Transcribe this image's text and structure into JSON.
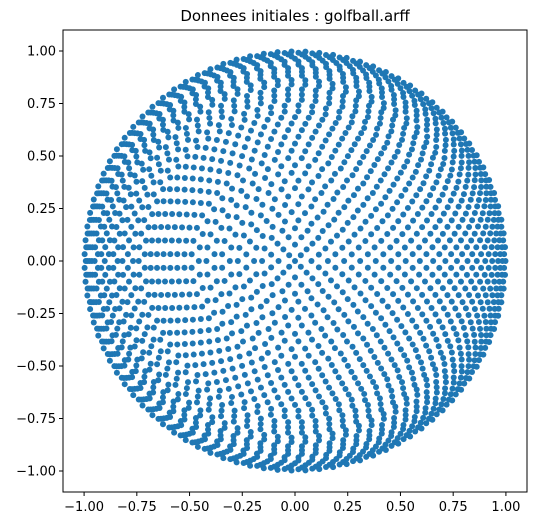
{
  "chart_data": {
    "type": "scatter",
    "title": "Donnees initiales : golfball.arff",
    "xlabel": "",
    "ylabel": "",
    "xlim": [
      -1.1,
      1.1
    ],
    "ylim": [
      -1.1,
      1.1
    ],
    "xticks": [
      -1.0,
      -0.75,
      -0.5,
      -0.25,
      0.0,
      0.25,
      0.5,
      0.75,
      1.0
    ],
    "yticks": [
      -1.0,
      -0.75,
      -0.5,
      -0.25,
      0.0,
      0.25,
      0.5,
      0.75,
      1.0
    ],
    "xtick_labels": [
      "−1.00",
      "−0.75",
      "−0.50",
      "−0.25",
      "0.00",
      "0.25",
      "0.50",
      "0.75",
      "1.00"
    ],
    "ytick_labels": [
      "−1.00",
      "−0.75",
      "−0.50",
      "−0.25",
      "0.00",
      "0.25",
      "0.50",
      "0.75",
      "1.00"
    ],
    "grid": false,
    "legend": false,
    "point_color": "#1f77b4",
    "series": [
      {
        "description_of_points": "",
        "rings": [
          {
            "r": 0.0,
            "n": 1
          },
          {
            "r": 0.039,
            "n": 4
          },
          {
            "r": 0.078,
            "n": 8
          },
          {
            "r": 0.117,
            "n": 12
          },
          {
            "r": 0.156,
            "n": 16
          },
          {
            "r": 0.194,
            "n": 19
          },
          {
            "r": 0.233,
            "n": 23
          },
          {
            "r": 0.271,
            "n": 27
          },
          {
            "r": 0.309,
            "n": 30
          },
          {
            "r": 0.347,
            "n": 34
          },
          {
            "r": 0.383,
            "n": 37
          },
          {
            "r": 0.42,
            "n": 41
          },
          {
            "r": 0.456,
            "n": 44
          },
          {
            "r": 0.491,
            "n": 48
          },
          {
            "r": 0.525,
            "n": 51
          },
          {
            "r": 0.559,
            "n": 54
          },
          {
            "r": 0.592,
            "n": 57
          },
          {
            "r": 0.624,
            "n": 60
          },
          {
            "r": 0.655,
            "n": 63
          },
          {
            "r": 0.685,
            "n": 66
          },
          {
            "r": 0.713,
            "n": 69
          },
          {
            "r": 0.741,
            "n": 71
          },
          {
            "r": 0.768,
            "n": 74
          },
          {
            "r": 0.793,
            "n": 76
          },
          {
            "r": 0.818,
            "n": 78
          },
          {
            "r": 0.841,
            "n": 81
          },
          {
            "r": 0.862,
            "n": 83
          },
          {
            "r": 0.883,
            "n": 84
          },
          {
            "r": 0.902,
            "n": 86
          },
          {
            "r": 0.919,
            "n": 88
          },
          {
            "r": 0.935,
            "n": 89
          },
          {
            "r": 0.95,
            "n": 91
          },
          {
            "r": 0.963,
            "n": 92
          },
          {
            "r": 0.974,
            "n": 93
          },
          {
            "r": 0.984,
            "n": 94
          },
          {
            "r": 0.992,
            "n": 95
          },
          {
            "r": 0.998,
            "n": 95
          }
        ]
      }
    ]
  }
}
